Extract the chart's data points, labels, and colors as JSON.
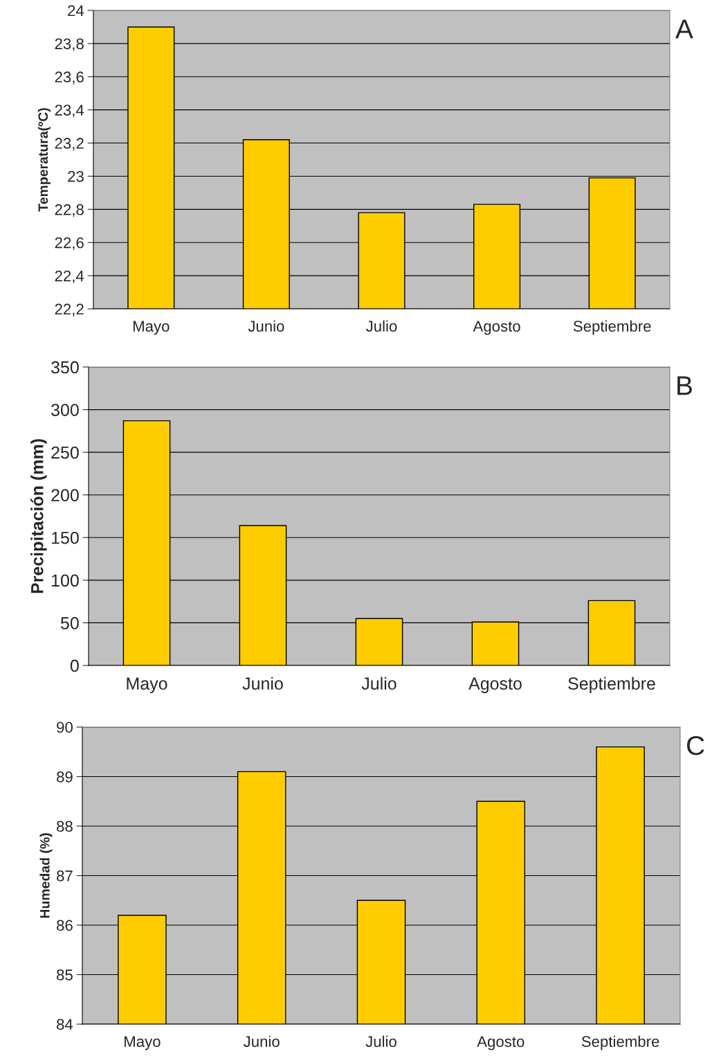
{
  "chart_data": [
    {
      "type": "bar",
      "ylabel": "Temperatura(ºC)",
      "categories": [
        "Mayo",
        "Junio",
        "Julio",
        "Agosto",
        "Septiembre"
      ],
      "values": [
        23.9,
        23.22,
        22.78,
        22.83,
        22.99
      ],
      "color": "#ffcc00",
      "ylim": [
        22.2,
        24
      ],
      "yticks": [
        {
          "value": 22.2,
          "label": "22,2"
        },
        {
          "value": 22.4,
          "label": "22,4"
        },
        {
          "value": 22.6,
          "label": "22,6"
        },
        {
          "value": 22.8,
          "label": "22,8"
        },
        23,
        {
          "value": 23.2,
          "label": "23,2"
        },
        {
          "value": 23.4,
          "label": "23,4"
        },
        {
          "value": 23.6,
          "label": "23,6"
        },
        {
          "value": 23.8,
          "label": "23,8"
        },
        24
      ],
      "grid": "y",
      "legend": false,
      "annotations": [
        "A"
      ]
    },
    {
      "type": "bar",
      "ylabel": "Precipitación (mm)",
      "categories": [
        "Mayo",
        "Junio",
        "Julio",
        "Agosto",
        "Septiembre"
      ],
      "values": [
        287,
        164,
        55,
        51,
        76
      ],
      "color": "#ffcc00",
      "ylim": [
        0,
        350
      ],
      "yticks": [
        0,
        50,
        100,
        150,
        200,
        250,
        300,
        350
      ],
      "grid": "y",
      "legend": false,
      "annotations": [
        "B"
      ]
    },
    {
      "type": "bar",
      "ylabel": "Humedad (%)",
      "categories": [
        "Mayo",
        "Junio",
        "Julio",
        "Agosto",
        "Septiembre"
      ],
      "values": [
        86.2,
        89.1,
        86.5,
        88.5,
        89.6
      ],
      "color": "#ffcc00",
      "ylim": [
        84,
        90
      ],
      "yticks": [
        84,
        85,
        86,
        87,
        88,
        89,
        90
      ],
      "grid": "y",
      "legend": false,
      "annotations": [
        "C"
      ]
    }
  ]
}
